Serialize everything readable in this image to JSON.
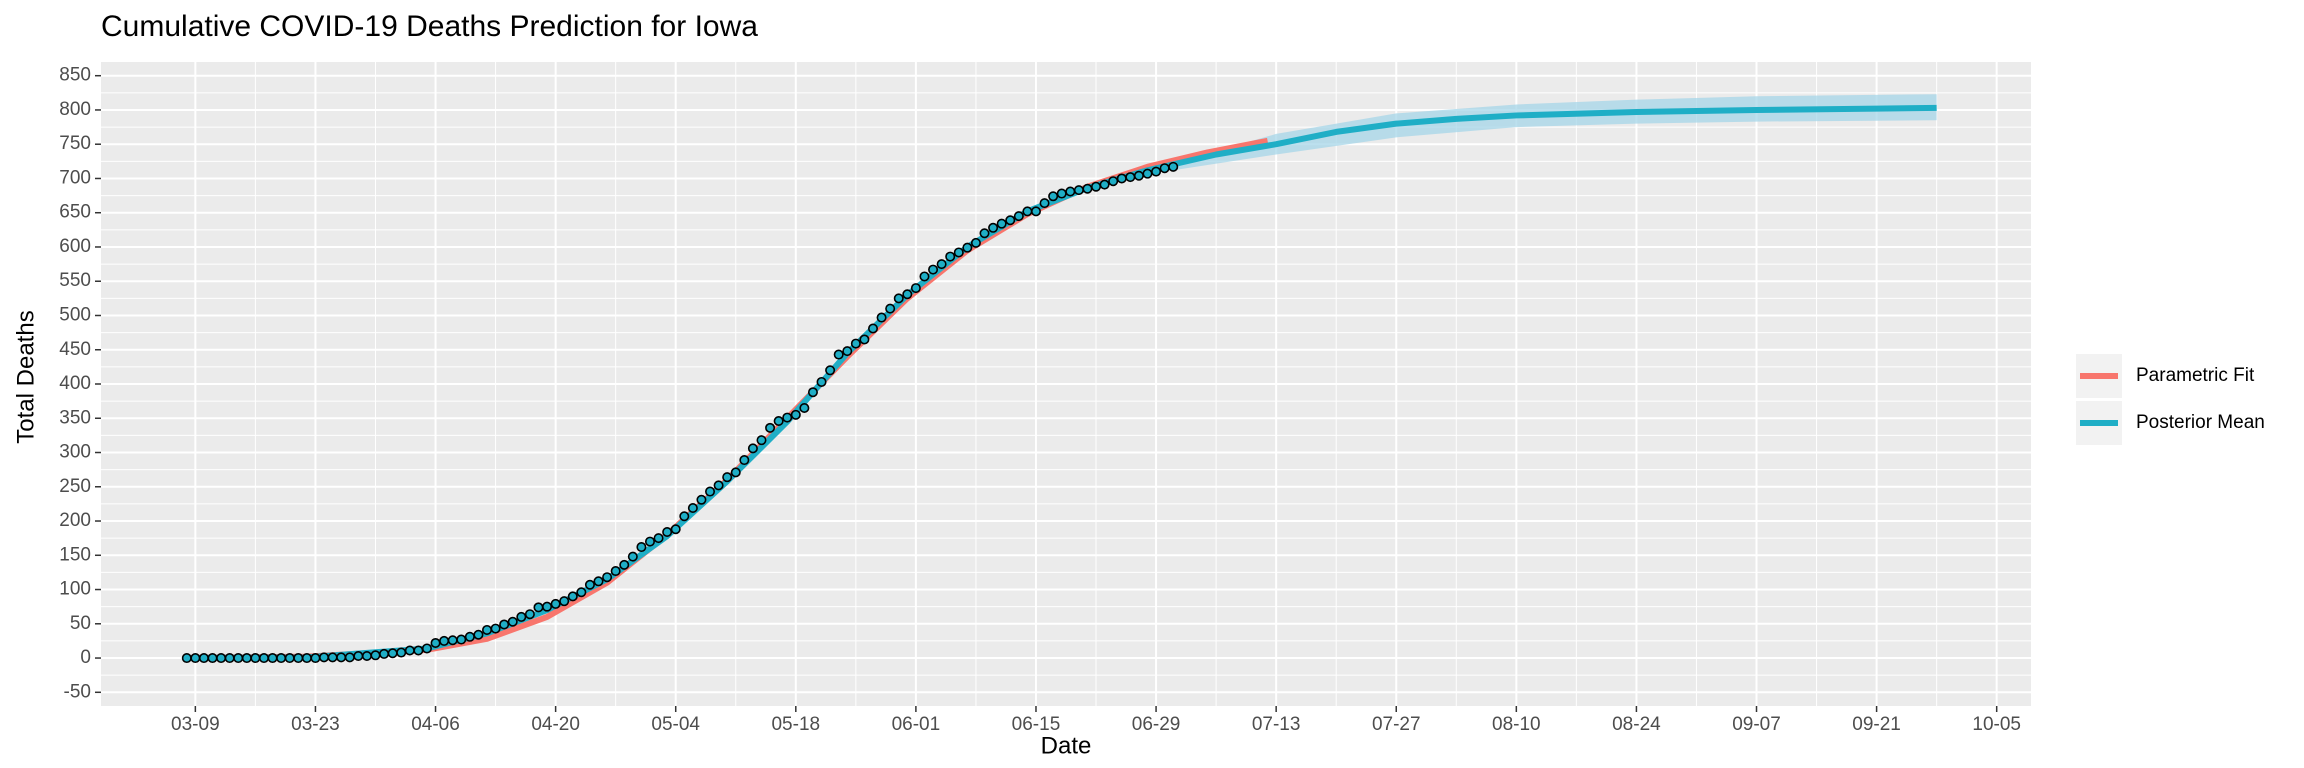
{
  "chart_data": {
    "type": "line",
    "title": "Cumulative COVID-19 Deaths Prediction for Iowa",
    "x_label": "Date",
    "y_label": "Total Deaths",
    "xlim": [
      "02-27",
      "10-09"
    ],
    "ylim": [
      -70,
      870
    ],
    "xticks": [
      "03-09",
      "03-23",
      "04-06",
      "04-20",
      "05-04",
      "05-18",
      "06-01",
      "06-15",
      "06-29",
      "07-13",
      "07-27",
      "08-10",
      "08-24",
      "09-07",
      "09-21",
      "10-05"
    ],
    "yticks": [
      -50,
      0,
      50,
      100,
      150,
      200,
      250,
      300,
      350,
      400,
      450,
      500,
      550,
      600,
      650,
      700,
      750,
      800,
      850
    ],
    "grid": true,
    "legend": "right",
    "band": {
      "color": "#a6d5e8",
      "x": [
        "07-01",
        "07-13",
        "07-27",
        "08-10",
        "08-24",
        "09-07",
        "09-28"
      ],
      "lower": [
        712,
        735,
        760,
        775,
        780,
        783,
        785
      ],
      "upper": [
        722,
        765,
        795,
        808,
        815,
        820,
        823
      ]
    },
    "series": [
      {
        "name": "Parametric Fit",
        "color": "#F8766D",
        "x": [
          "03-08",
          "03-22",
          "04-05",
          "04-12",
          "04-19",
          "04-26",
          "05-03",
          "05-10",
          "05-17",
          "05-24",
          "05-31",
          "06-07",
          "06-14",
          "06-21",
          "06-28",
          "07-05",
          "07-12"
        ],
        "values": [
          0,
          2,
          12,
          28,
          60,
          110,
          180,
          260,
          350,
          440,
          525,
          595,
          648,
          688,
          717,
          738,
          755
        ]
      },
      {
        "name": "Posterior Mean",
        "color": "#1FAEC6",
        "x": [
          "03-08",
          "03-22",
          "04-05",
          "04-12",
          "04-19",
          "04-26",
          "05-03",
          "05-10",
          "05-17",
          "05-24",
          "05-31",
          "06-07",
          "06-14",
          "06-21",
          "06-28",
          "07-06",
          "07-13",
          "07-20",
          "07-27",
          "08-03",
          "08-10",
          "08-24",
          "09-07",
          "09-21",
          "09-28"
        ],
        "values": [
          0,
          1,
          14,
          36,
          70,
          115,
          178,
          258,
          345,
          445,
          530,
          600,
          652,
          686,
          712,
          735,
          750,
          768,
          780,
          787,
          792,
          797,
          800,
          802,
          803
        ]
      }
    ],
    "points": {
      "color": "#1FAEC6",
      "x": [
        "03-08",
        "03-09",
        "03-10",
        "03-11",
        "03-12",
        "03-13",
        "03-14",
        "03-15",
        "03-16",
        "03-17",
        "03-18",
        "03-19",
        "03-20",
        "03-21",
        "03-22",
        "03-23",
        "03-24",
        "03-25",
        "03-26",
        "03-27",
        "03-28",
        "03-29",
        "03-30",
        "03-31",
        "04-01",
        "04-02",
        "04-03",
        "04-04",
        "04-05",
        "04-06",
        "04-07",
        "04-08",
        "04-09",
        "04-10",
        "04-11",
        "04-12",
        "04-13",
        "04-14",
        "04-15",
        "04-16",
        "04-17",
        "04-18",
        "04-19",
        "04-20",
        "04-21",
        "04-22",
        "04-23",
        "04-24",
        "04-25",
        "04-26",
        "04-27",
        "04-28",
        "04-29",
        "04-30",
        "05-01",
        "05-02",
        "05-03",
        "05-04",
        "05-05",
        "05-06",
        "05-07",
        "05-08",
        "05-09",
        "05-10",
        "05-11",
        "05-12",
        "05-13",
        "05-14",
        "05-15",
        "05-16",
        "05-17",
        "05-18",
        "05-19",
        "05-20",
        "05-21",
        "05-22",
        "05-23",
        "05-24",
        "05-25",
        "05-26",
        "05-27",
        "05-28",
        "05-29",
        "05-30",
        "05-31",
        "06-01",
        "06-02",
        "06-03",
        "06-04",
        "06-05",
        "06-06",
        "06-07",
        "06-08",
        "06-09",
        "06-10",
        "06-11",
        "06-12",
        "06-13",
        "06-14",
        "06-15",
        "06-16",
        "06-17",
        "06-18",
        "06-19",
        "06-20",
        "06-21",
        "06-22",
        "06-23",
        "06-24",
        "06-25",
        "06-26",
        "06-27",
        "06-28",
        "06-29",
        "06-30",
        "07-01"
      ],
      "values": [
        0,
        0,
        0,
        0,
        0,
        0,
        0,
        0,
        0,
        0,
        0,
        0,
        0,
        0,
        0,
        0,
        1,
        1,
        1,
        1,
        3,
        3,
        4,
        6,
        7,
        8,
        11,
        11,
        14,
        22,
        25,
        26,
        27,
        31,
        34,
        41,
        43,
        49,
        53,
        60,
        64,
        74,
        75,
        79,
        83,
        90,
        96,
        107,
        112,
        118,
        127,
        136,
        148,
        162,
        170,
        175,
        184,
        188,
        207,
        219,
        231,
        243,
        252,
        264,
        271,
        289,
        306,
        318,
        336,
        346,
        351,
        355,
        365,
        388,
        403,
        420,
        443,
        448,
        459,
        465,
        481,
        497,
        510,
        525,
        531,
        540,
        557,
        567,
        575,
        586,
        592,
        599,
        606,
        620,
        628,
        634,
        639,
        645,
        652,
        652,
        664,
        674,
        678,
        681,
        683,
        685,
        688,
        691,
        696,
        700,
        702,
        704,
        707,
        710,
        715,
        717
      ]
    }
  }
}
